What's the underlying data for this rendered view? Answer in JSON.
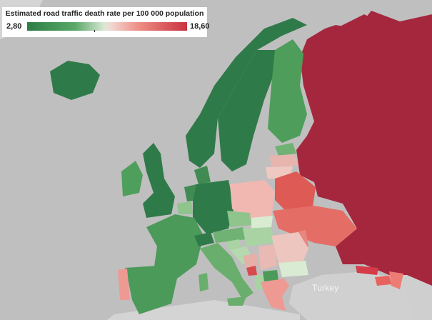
{
  "legend": {
    "title": "Estimated road traffic death rate per 100 000 population",
    "min": "2,80",
    "max": "18,60"
  },
  "labels": {
    "turkey": "Turkey"
  },
  "colors": {
    "background": "#bfbfbf",
    "low": "#2e7d46",
    "mid": "#e8ece6",
    "high": "#c9323f",
    "russia": "#a5273d"
  }
}
